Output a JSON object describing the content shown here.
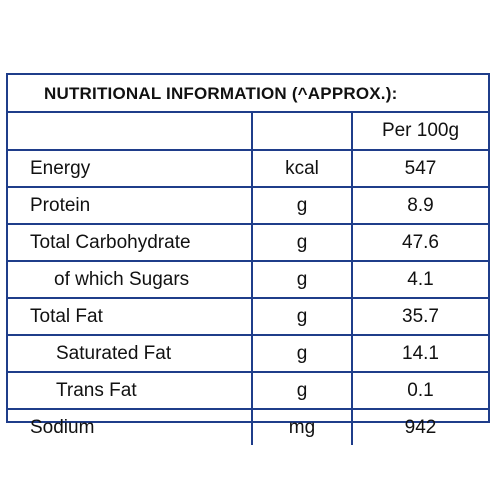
{
  "title": "NUTRITIONAL INFORMATION (^APPROX.):",
  "header": {
    "name": "",
    "unit": "",
    "value": "Per 100g"
  },
  "rows": [
    {
      "name": "Energy",
      "unit": "kcal",
      "value": "547"
    },
    {
      "name": "Protein",
      "unit": "g",
      "value": "8.9"
    },
    {
      "name": "Total Carbohydrate",
      "unit": "g",
      "value": "47.6"
    },
    {
      "name": "of which Sugars",
      "unit": "g",
      "value": "4.1"
    },
    {
      "name": "Total Fat",
      "unit": "g",
      "value": "35.7"
    },
    {
      "name": "Saturated Fat",
      "unit": "g",
      "value": "14.1"
    },
    {
      "name": "Trans Fat",
      "unit": "g",
      "value": "0.1"
    },
    {
      "name": "Sodium",
      "unit": "mg",
      "value": "942"
    }
  ],
  "colors": {
    "border": "#1f3d8a",
    "text": "#111111",
    "background": "#ffffff"
  }
}
